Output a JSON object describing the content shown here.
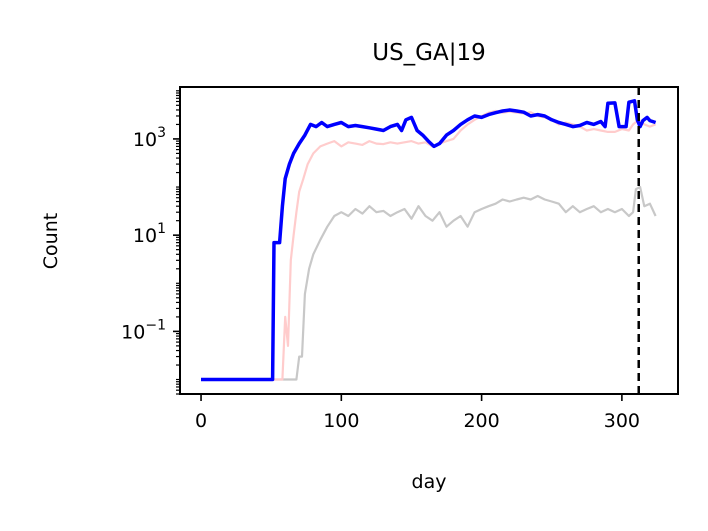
{
  "chart_data": {
    "type": "line",
    "title": "US_GA|19",
    "xlabel": "day",
    "ylabel": "Count",
    "yscale": "log",
    "xlim": [
      -15,
      340
    ],
    "ylim": [
      0.005,
      12000
    ],
    "x_ticks": [
      0,
      100,
      200,
      300
    ],
    "x_tick_labels": [
      "0",
      "100",
      "200",
      "300"
    ],
    "y_ticks": [
      0.1,
      10,
      1000
    ],
    "y_tick_labels": [
      {
        "base": "10",
        "exp": "−1"
      },
      {
        "base": "10",
        "exp": "1"
      },
      {
        "base": "10",
        "exp": "3"
      }
    ],
    "vline": {
      "x": 312,
      "style": "dashed",
      "color": "#000000"
    },
    "grid": false,
    "series": [
      {
        "color": "#c8c8c8",
        "points": [
          [
            0,
            0.01
          ],
          [
            68,
            0.01
          ],
          [
            70,
            0.03
          ],
          [
            72,
            0.03
          ],
          [
            74,
            0.6
          ],
          [
            77,
            2
          ],
          [
            80,
            4
          ],
          [
            85,
            8
          ],
          [
            90,
            15
          ],
          [
            95,
            25
          ],
          [
            100,
            30
          ],
          [
            105,
            25
          ],
          [
            110,
            35
          ],
          [
            115,
            28
          ],
          [
            120,
            40
          ],
          [
            125,
            30
          ],
          [
            130,
            32
          ],
          [
            135,
            25
          ],
          [
            140,
            30
          ],
          [
            145,
            35
          ],
          [
            150,
            22
          ],
          [
            155,
            40
          ],
          [
            160,
            25
          ],
          [
            165,
            20
          ],
          [
            170,
            30
          ],
          [
            175,
            15
          ],
          [
            180,
            20
          ],
          [
            185,
            25
          ],
          [
            190,
            15
          ],
          [
            195,
            30
          ],
          [
            200,
            35
          ],
          [
            205,
            40
          ],
          [
            210,
            45
          ],
          [
            215,
            55
          ],
          [
            220,
            50
          ],
          [
            225,
            55
          ],
          [
            230,
            60
          ],
          [
            235,
            55
          ],
          [
            240,
            65
          ],
          [
            245,
            55
          ],
          [
            250,
            50
          ],
          [
            255,
            45
          ],
          [
            260,
            30
          ],
          [
            265,
            40
          ],
          [
            270,
            30
          ],
          [
            275,
            35
          ],
          [
            280,
            40
          ],
          [
            285,
            30
          ],
          [
            290,
            35
          ],
          [
            295,
            30
          ],
          [
            300,
            35
          ],
          [
            305,
            25
          ],
          [
            308,
            30
          ],
          [
            310,
            90
          ],
          [
            313,
            100
          ],
          [
            316,
            40
          ],
          [
            320,
            45
          ],
          [
            324,
            25
          ]
        ]
      },
      {
        "color": "#ffcccc",
        "points": [
          [
            0,
            0.01
          ],
          [
            58,
            0.01
          ],
          [
            60,
            0.2
          ],
          [
            62,
            0.05
          ],
          [
            64,
            3
          ],
          [
            66,
            10
          ],
          [
            68,
            30
          ],
          [
            70,
            80
          ],
          [
            73,
            150
          ],
          [
            76,
            300
          ],
          [
            80,
            500
          ],
          [
            85,
            700
          ],
          [
            90,
            800
          ],
          [
            95,
            900
          ],
          [
            100,
            700
          ],
          [
            105,
            850
          ],
          [
            110,
            800
          ],
          [
            115,
            750
          ],
          [
            120,
            900
          ],
          [
            125,
            800
          ],
          [
            130,
            780
          ],
          [
            135,
            850
          ],
          [
            140,
            800
          ],
          [
            145,
            850
          ],
          [
            150,
            900
          ],
          [
            155,
            800
          ],
          [
            160,
            850
          ],
          [
            165,
            700
          ],
          [
            170,
            800
          ],
          [
            175,
            900
          ],
          [
            180,
            1000
          ],
          [
            185,
            1500
          ],
          [
            190,
            2000
          ],
          [
            195,
            2500
          ],
          [
            200,
            3000
          ],
          [
            205,
            3500
          ],
          [
            210,
            3800
          ],
          [
            215,
            3500
          ],
          [
            220,
            3700
          ],
          [
            225,
            3500
          ],
          [
            230,
            3400
          ],
          [
            235,
            3600
          ],
          [
            240,
            3000
          ],
          [
            245,
            2800
          ],
          [
            250,
            2500
          ],
          [
            255,
            2000
          ],
          [
            260,
            2200
          ],
          [
            265,
            2000
          ],
          [
            270,
            1800
          ],
          [
            275,
            1500
          ],
          [
            280,
            1600
          ],
          [
            285,
            1500
          ],
          [
            290,
            1400
          ],
          [
            295,
            1400
          ],
          [
            300,
            1600
          ],
          [
            305,
            1500
          ],
          [
            308,
            2000
          ],
          [
            312,
            2500
          ],
          [
            316,
            2000
          ],
          [
            320,
            1800
          ],
          [
            324,
            2000
          ]
        ]
      },
      {
        "color": "#0000ff",
        "points": [
          [
            0,
            0.01
          ],
          [
            51,
            0.01
          ],
          [
            52,
            7
          ],
          [
            56,
            7
          ],
          [
            58,
            40
          ],
          [
            60,
            150
          ],
          [
            63,
            300
          ],
          [
            66,
            500
          ],
          [
            70,
            800
          ],
          [
            74,
            1200
          ],
          [
            78,
            2000
          ],
          [
            82,
            1800
          ],
          [
            86,
            2200
          ],
          [
            90,
            1800
          ],
          [
            95,
            2000
          ],
          [
            100,
            2200
          ],
          [
            105,
            1800
          ],
          [
            110,
            1900
          ],
          [
            115,
            1800
          ],
          [
            120,
            1700
          ],
          [
            125,
            1600
          ],
          [
            130,
            1500
          ],
          [
            135,
            1800
          ],
          [
            140,
            2000
          ],
          [
            143,
            1500
          ],
          [
            146,
            2500
          ],
          [
            150,
            2800
          ],
          [
            154,
            1500
          ],
          [
            158,
            1200
          ],
          [
            162,
            900
          ],
          [
            166,
            700
          ],
          [
            170,
            800
          ],
          [
            175,
            1200
          ],
          [
            180,
            1500
          ],
          [
            185,
            2000
          ],
          [
            190,
            2500
          ],
          [
            195,
            3000
          ],
          [
            200,
            2800
          ],
          [
            205,
            3200
          ],
          [
            210,
            3500
          ],
          [
            215,
            3800
          ],
          [
            220,
            4000
          ],
          [
            225,
            3800
          ],
          [
            230,
            3600
          ],
          [
            235,
            3000
          ],
          [
            240,
            3200
          ],
          [
            245,
            3000
          ],
          [
            250,
            2500
          ],
          [
            255,
            2200
          ],
          [
            260,
            2000
          ],
          [
            265,
            1800
          ],
          [
            270,
            1900
          ],
          [
            275,
            2200
          ],
          [
            280,
            2000
          ],
          [
            285,
            2300
          ],
          [
            288,
            1800
          ],
          [
            290,
            5500
          ],
          [
            295,
            5600
          ],
          [
            298,
            1800
          ],
          [
            303,
            1800
          ],
          [
            305,
            5800
          ],
          [
            309,
            6200
          ],
          [
            311,
            2500
          ],
          [
            313,
            1800
          ],
          [
            315,
            2400
          ],
          [
            318,
            2800
          ],
          [
            320,
            2400
          ],
          [
            324,
            2200
          ]
        ]
      }
    ]
  }
}
